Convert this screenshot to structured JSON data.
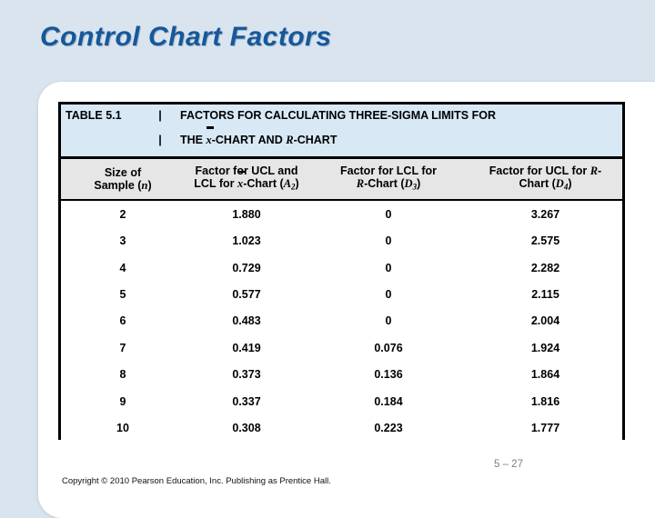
{
  "slide": {
    "title": "Control Chart Factors",
    "page_number": "5 – 27",
    "copyright": "Copyright © 2010 Pearson Education, Inc. Publishing as Prentice Hall."
  },
  "colors": {
    "background": "#d9e4ee",
    "title_blue": "#15589b",
    "caption_fill": "#d9e8f5",
    "column_header_fill": "#e6e6e6",
    "border": "#000000",
    "page_number_gray": "#7f7f7f"
  },
  "table": {
    "label": "TABLE 5.1",
    "separator": "|",
    "caption_line1": "FACTORS FOR CALCULATING THREE-SIGMA LIMITS FOR",
    "caption_line2_segments": [
      {
        "t": "THE "
      },
      {
        "t": "x",
        "s": "varbar"
      },
      {
        "t": "-CHART AND "
      },
      {
        "t": "R",
        "s": "var"
      },
      {
        "t": "-CHART"
      }
    ],
    "columns": [
      {
        "line1": [
          {
            "t": "Size of"
          }
        ],
        "line2": [
          {
            "t": "Sample ("
          },
          {
            "t": "n",
            "s": "var"
          },
          {
            "t": ")"
          }
        ]
      },
      {
        "line1": [
          {
            "t": "Factor for UCL and"
          }
        ],
        "line2": [
          {
            "t": "LCL for "
          },
          {
            "t": "x",
            "s": "varbar"
          },
          {
            "t": "-Chart ("
          },
          {
            "t": "A",
            "s": "var"
          },
          {
            "t": "2",
            "s": "sub"
          },
          {
            "t": ")"
          }
        ]
      },
      {
        "line1": [
          {
            "t": "Factor for LCL for"
          }
        ],
        "line2": [
          {
            "t": "R",
            "s": "var"
          },
          {
            "t": "-Chart ("
          },
          {
            "t": "D",
            "s": "var"
          },
          {
            "t": "3",
            "s": "sub"
          },
          {
            "t": ")"
          }
        ]
      },
      {
        "line1": [
          {
            "t": "Factor for UCL for "
          },
          {
            "t": "R",
            "s": "var"
          },
          {
            "t": "-"
          }
        ],
        "line2": [
          {
            "t": "Chart ("
          },
          {
            "t": "D",
            "s": "var"
          },
          {
            "t": "4",
            "s": "sub"
          },
          {
            "t": ")"
          }
        ]
      }
    ],
    "rows": [
      [
        "2",
        "1.880",
        "0",
        "3.267"
      ],
      [
        "3",
        "1.023",
        "0",
        "2.575"
      ],
      [
        "4",
        "0.729",
        "0",
        "2.282"
      ],
      [
        "5",
        "0.577",
        "0",
        "2.115"
      ],
      [
        "6",
        "0.483",
        "0",
        "2.004"
      ],
      [
        "7",
        "0.419",
        "0.076",
        "1.924"
      ],
      [
        "8",
        "0.373",
        "0.136",
        "1.864"
      ],
      [
        "9",
        "0.337",
        "0.184",
        "1.816"
      ],
      [
        "10",
        "0.308",
        "0.223",
        "1.777"
      ]
    ]
  }
}
